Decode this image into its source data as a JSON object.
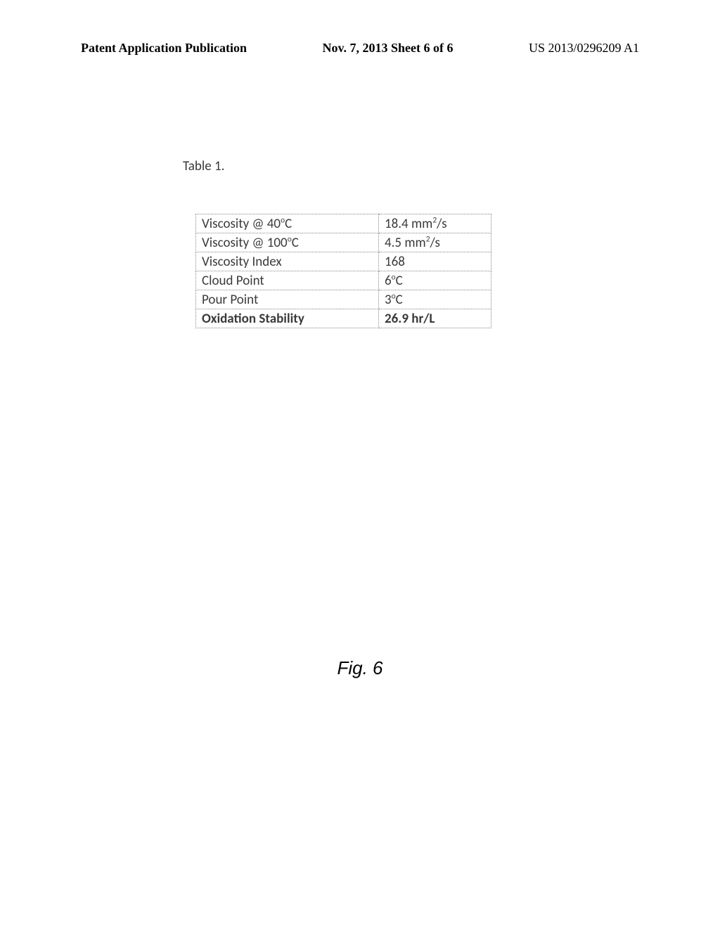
{
  "header": {
    "left": "Patent Application Publication",
    "center": "Nov. 7, 2013  Sheet 6 of 6",
    "right": "US 2013/0296209 A1"
  },
  "table": {
    "caption": "Table 1.",
    "rows": [
      {
        "property": "Viscosity @ 40°C",
        "value": "18.4 mm²/s",
        "bold": false
      },
      {
        "property": "Viscosity @ 100°C",
        "value": "4.5  mm²/s",
        "bold": false
      },
      {
        "property": "Viscosity Index",
        "value": "168",
        "bold": false
      },
      {
        "property": "Cloud Point",
        "value": "6°C",
        "bold": false
      },
      {
        "property": "Pour Point",
        "value": "3°C",
        "bold": false
      },
      {
        "property": "Oxidation Stability",
        "value": "26.9 hr/L",
        "bold": true
      }
    ]
  },
  "figure_label": "Fig. 6"
}
